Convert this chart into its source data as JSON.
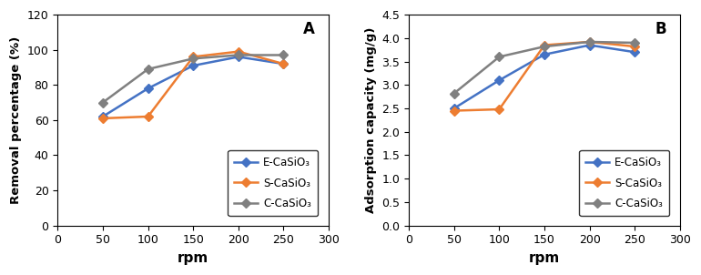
{
  "rpm": [
    50,
    100,
    150,
    200,
    250
  ],
  "removal_E": [
    62,
    78,
    91,
    96,
    92
  ],
  "removal_S": [
    61,
    62,
    96,
    99,
    92
  ],
  "removal_C": [
    70,
    89,
    95,
    97,
    97
  ],
  "adsorption_E": [
    2.5,
    3.1,
    3.65,
    3.85,
    3.7
  ],
  "adsorption_S": [
    2.45,
    2.48,
    3.85,
    3.92,
    3.82
  ],
  "adsorption_C": [
    2.82,
    3.6,
    3.82,
    3.92,
    3.9
  ],
  "color_E": "#4472C4",
  "color_S": "#ED7D31",
  "color_C": "#808080",
  "label_E": "E-CaSiO₃",
  "label_S": "S-CaSiO₃",
  "label_C": "C-CaSiO₃",
  "ylabel_A": "Removal percentage (%)",
  "ylabel_B": "Adsorption capacity (mg/g)",
  "xlabel": "rpm",
  "ylim_A": [
    0,
    120
  ],
  "yticks_A": [
    0,
    20,
    40,
    60,
    80,
    100,
    120
  ],
  "ylim_B": [
    0,
    4.5
  ],
  "yticks_B": [
    0,
    0.5,
    1.0,
    1.5,
    2.0,
    2.5,
    3.0,
    3.5,
    4.0,
    4.5
  ],
  "xlim": [
    0,
    300
  ],
  "xticks": [
    0,
    50,
    100,
    150,
    200,
    250,
    300
  ],
  "panel_A": "A",
  "panel_B": "B",
  "marker": "D",
  "markersize": 5,
  "linewidth": 1.8
}
